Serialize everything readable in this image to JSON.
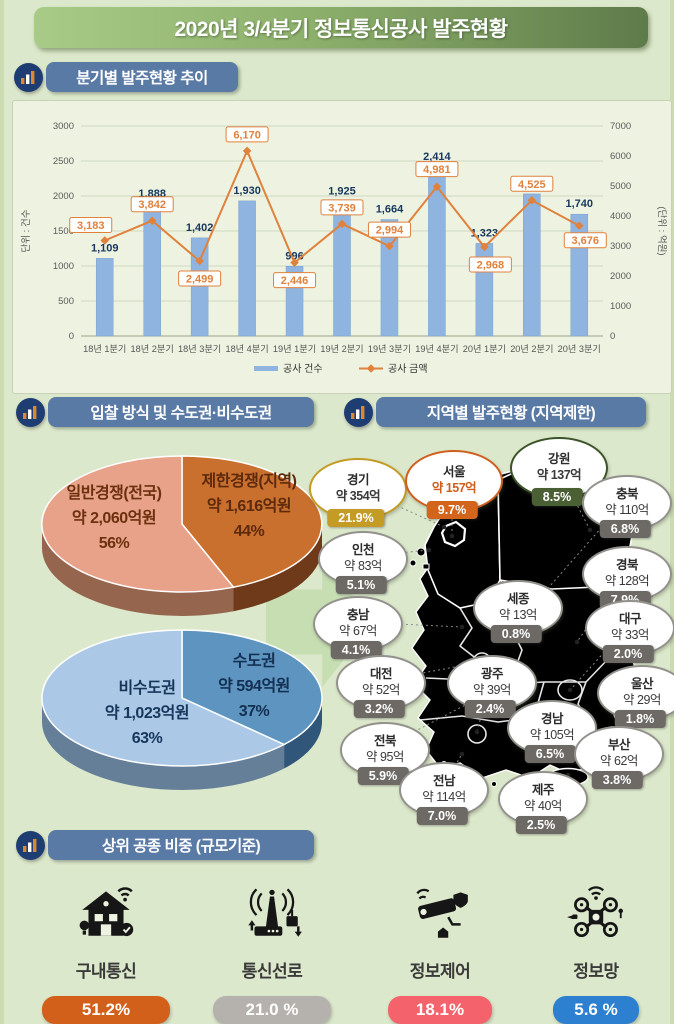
{
  "title": "2020년 3/4분기 정보통신공사 발주현황",
  "sections": {
    "quarterly_header": "분기별 발주현황 추이",
    "bidding_header": "입찰 방식 및 수도권·비수도권",
    "regional_header": "지역별 발주현황 (지역제한)",
    "category_header": "상위 공종 비중 (규모기준)"
  },
  "chart_data": [
    {
      "type": "bar",
      "title": "분기별 발주현황 추이",
      "categories": [
        "18년 1분기",
        "18년 2분기",
        "18년 3분기",
        "18년 4분기",
        "19년 1분기",
        "19년 2분기",
        "19년 3분기",
        "19년 4분기",
        "20년 1분기",
        "20년 2분기",
        "20년 3분기"
      ],
      "series": [
        {
          "name": "공사 건수",
          "type": "bar",
          "axis": "left",
          "color": "#8fb4df",
          "label_color": "#17375d",
          "values": [
            1109,
            1888,
            1402,
            1930,
            996,
            1925,
            1664,
            2414,
            1323,
            2030,
            1740
          ]
        },
        {
          "name": "공사 금액",
          "type": "line",
          "axis": "right",
          "color": "#e0813c",
          "values": [
            3183,
            3842,
            2499,
            6170,
            2446,
            3739,
            2994,
            4981,
            2968,
            4525,
            3676
          ]
        }
      ],
      "left_axis": {
        "title": "단위 : 건수",
        "min": 0,
        "max": 3000,
        "step": 500
      },
      "right_axis": {
        "title": "(단위 : 억원)",
        "min": 0,
        "max": 7000,
        "step": 1000
      },
      "grid": true,
      "legend_position": "bottom"
    },
    {
      "type": "pie",
      "title": "입찰 방식",
      "slices": [
        {
          "label": "일반경쟁(전국)",
          "amount": "약 2,060억원",
          "value": 2060,
          "pct": 56,
          "pct_label": "56%",
          "color": "#e8a289",
          "side_color": "#96654e",
          "text_color": "#6b300e"
        },
        {
          "label": "제한경쟁(지역)",
          "amount": "약 1,616억원",
          "value": 1616,
          "pct": 44,
          "pct_label": "44%",
          "color": "#c9702f",
          "side_color": "#6e3a1a",
          "text_color": "#5d2a0c"
        }
      ]
    },
    {
      "type": "pie",
      "title": "수도권·비수도권",
      "slices": [
        {
          "label": "비수도권",
          "amount": "약 1,023억원",
          "value": 1023,
          "pct": 63,
          "pct_label": "63%",
          "color": "#abc8e6",
          "side_color": "#647f97",
          "text_color": "#16365c"
        },
        {
          "label": "수도권",
          "amount": "약 594억원",
          "value": 594,
          "pct": 37,
          "pct_label": "37%",
          "color": "#5e95c0",
          "side_color": "#30567a",
          "text_color": "#132f52"
        }
      ]
    }
  ],
  "map": {
    "region_colors": {
      "gyeonggi": "#d7a31c",
      "seoul": "#cf5f1d",
      "gangwon": "#41582c",
      "default": "#a9a9a9"
    },
    "regions": [
      {
        "name": "경기",
        "value": "약 354억",
        "pct": "21.9%",
        "theme": "gold"
      },
      {
        "name": "서울",
        "value": "약 157억",
        "pct": "9.7%",
        "theme": "orange"
      },
      {
        "name": "강원",
        "value": "약 137억",
        "pct": "8.5%",
        "theme": "green"
      },
      {
        "name": "충북",
        "value": "약 110억",
        "pct": "6.8%",
        "theme": "gray"
      },
      {
        "name": "인천",
        "value": "약 83억",
        "pct": "5.1%",
        "theme": "gray"
      },
      {
        "name": "경북",
        "value": "약 128억",
        "pct": "7.9%",
        "theme": "gray"
      },
      {
        "name": "세종",
        "value": "약 13억",
        "pct": "0.8%",
        "theme": "gray"
      },
      {
        "name": "충남",
        "value": "약 67억",
        "pct": "4.1%",
        "theme": "gray"
      },
      {
        "name": "대구",
        "value": "약 33억",
        "pct": "2.0%",
        "theme": "gray"
      },
      {
        "name": "대전",
        "value": "약 52억",
        "pct": "3.2%",
        "theme": "gray"
      },
      {
        "name": "광주",
        "value": "약 39억",
        "pct": "2.4%",
        "theme": "gray"
      },
      {
        "name": "울산",
        "value": "약 29억",
        "pct": "1.8%",
        "theme": "gray"
      },
      {
        "name": "경남",
        "value": "약 105억",
        "pct": "6.5%",
        "theme": "gray"
      },
      {
        "name": "전북",
        "value": "약 95억",
        "pct": "5.9%",
        "theme": "gray"
      },
      {
        "name": "부산",
        "value": "약 62억",
        "pct": "3.8%",
        "theme": "gray"
      },
      {
        "name": "전남",
        "value": "약 114억",
        "pct": "7.0%",
        "theme": "gray"
      },
      {
        "name": "제주",
        "value": "약 40억",
        "pct": "2.5%",
        "theme": "gray"
      }
    ]
  },
  "top_categories": {
    "items": [
      {
        "label": "구내통신",
        "pct": "51.2%",
        "color": "#d2601a",
        "icon": "building-telecom-icon"
      },
      {
        "label": "통신선로",
        "pct": "21.0 %",
        "color": "#b5b2ae",
        "icon": "telecom-line-icon"
      },
      {
        "label": "정보제어",
        "pct": "18.1%",
        "color": "#f4626c",
        "icon": "cctv-control-icon"
      },
      {
        "label": "정보망",
        "pct": "5.6 %",
        "color": "#2d7fd0",
        "icon": "drone-network-icon"
      }
    ]
  }
}
